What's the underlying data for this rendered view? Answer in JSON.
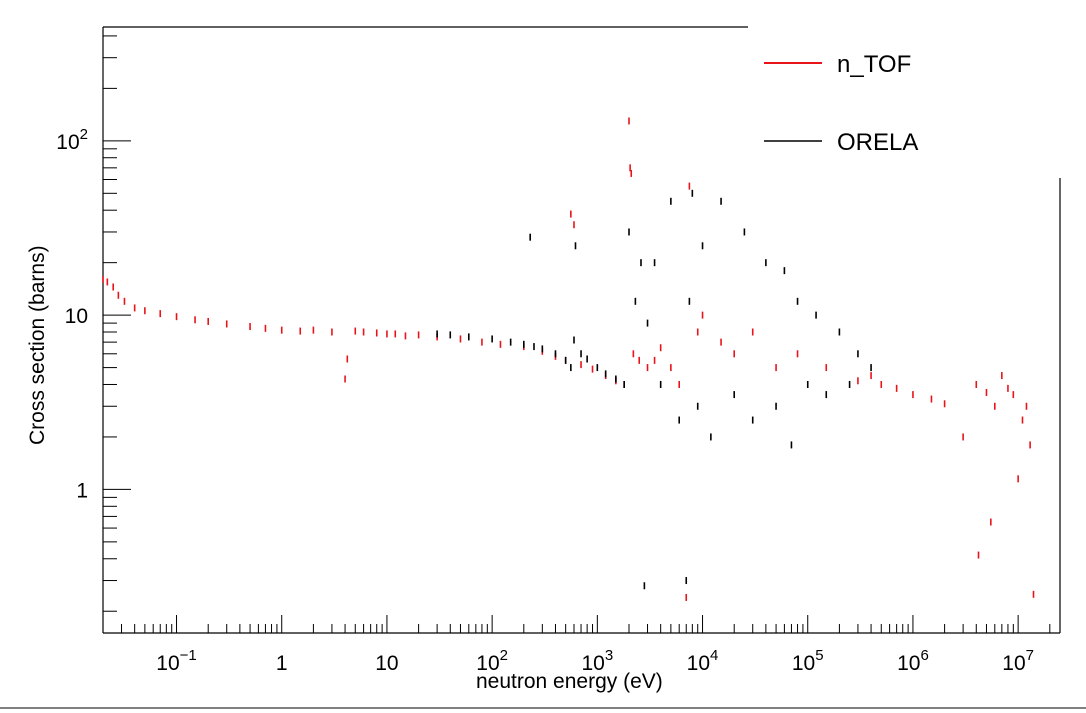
{
  "chart_data": {
    "type": "scatter",
    "title": "",
    "xlabel": "neutron energy (eV)",
    "ylabel": "Cross section (barns)",
    "x_scale": "log",
    "y_scale": "log",
    "xlim": [
      0.02,
      25000000
    ],
    "ylim": [
      0.15,
      450
    ],
    "legend": {
      "placement": "top-right",
      "entries": [
        "n_TOF",
        "ORELA"
      ]
    },
    "x_ticks": [
      {
        "label": "10",
        "sup": "−1"
      },
      {
        "label": "1",
        "sup": ""
      },
      {
        "label": "10",
        "sup": ""
      },
      {
        "label": "10",
        "sup": "2"
      },
      {
        "label": "10",
        "sup": "3"
      },
      {
        "label": "10",
        "sup": "4"
      },
      {
        "label": "10",
        "sup": "5"
      },
      {
        "label": "10",
        "sup": "6"
      },
      {
        "label": "10",
        "sup": "7"
      }
    ],
    "y_ticks": [
      {
        "label": "1",
        "sup": ""
      },
      {
        "label": "10",
        "sup": ""
      },
      {
        "label": "10",
        "sup": "2"
      }
    ],
    "series": [
      {
        "name": "n_TOF",
        "color": "#e8141a",
        "points": [
          [
            0.02,
            16
          ],
          [
            0.022,
            15.5
          ],
          [
            0.025,
            14.5
          ],
          [
            0.028,
            13
          ],
          [
            0.032,
            12
          ],
          [
            0.04,
            11
          ],
          [
            0.05,
            10.6
          ],
          [
            0.07,
            10.2
          ],
          [
            0.1,
            9.8
          ],
          [
            0.15,
            9.4
          ],
          [
            0.2,
            9.2
          ],
          [
            0.3,
            8.9
          ],
          [
            0.5,
            8.6
          ],
          [
            0.7,
            8.4
          ],
          [
            1,
            8.2
          ],
          [
            1.5,
            8.1
          ],
          [
            2,
            8.2
          ],
          [
            3,
            8.0
          ],
          [
            4,
            4.3
          ],
          [
            4.2,
            5.6
          ],
          [
            5,
            8.1
          ],
          [
            6,
            8.0
          ],
          [
            8,
            7.9
          ],
          [
            10,
            7.8
          ],
          [
            12,
            7.8
          ],
          [
            15,
            7.6
          ],
          [
            20,
            7.7
          ],
          [
            30,
            7.5
          ],
          [
            50,
            7.3
          ],
          [
            80,
            7.0
          ],
          [
            120,
            6.8
          ],
          [
            200,
            6.6
          ],
          [
            300,
            6.2
          ],
          [
            400,
            5.8
          ],
          [
            500,
            5.5
          ],
          [
            560,
            38
          ],
          [
            600,
            33
          ],
          [
            700,
            5.2
          ],
          [
            900,
            4.9
          ],
          [
            1200,
            4.5
          ],
          [
            1500,
            4.2
          ],
          [
            1800,
            4.0
          ],
          [
            2000,
            130
          ],
          [
            2050,
            70
          ],
          [
            2100,
            65
          ],
          [
            2200,
            6.0
          ],
          [
            2500,
            5.5
          ],
          [
            3000,
            5.0
          ],
          [
            3500,
            5.5
          ],
          [
            4000,
            6.5
          ],
          [
            5000,
            5.0
          ],
          [
            6000,
            4.0
          ],
          [
            7000,
            0.24
          ],
          [
            7500,
            55
          ],
          [
            9000,
            8.0
          ],
          [
            10000,
            10.0
          ],
          [
            15000,
            7.0
          ],
          [
            20000,
            6.0
          ],
          [
            30000,
            8.0
          ],
          [
            50000,
            5.0
          ],
          [
            80000,
            6.0
          ],
          [
            150000,
            5.0
          ],
          [
            300000,
            4.2
          ],
          [
            400000,
            4.5
          ],
          [
            500000,
            4.0
          ],
          [
            700000,
            3.8
          ],
          [
            1000000,
            3.5
          ],
          [
            1500000,
            3.3
          ],
          [
            2000000,
            3.1
          ],
          [
            3000000,
            2.0
          ],
          [
            4000000,
            4.0
          ],
          [
            4200000,
            0.42
          ],
          [
            5000000,
            3.6
          ],
          [
            5500000,
            0.65
          ],
          [
            6000000,
            3.0
          ],
          [
            7000000,
            4.5
          ],
          [
            8000000,
            3.8
          ],
          [
            9000000,
            3.5
          ],
          [
            10000000,
            1.15
          ],
          [
            11000000,
            2.5
          ],
          [
            12000000,
            3.0
          ],
          [
            13000000,
            1.8
          ],
          [
            14000000,
            0.25
          ]
        ]
      },
      {
        "name": "ORELA",
        "color": "#000000",
        "points": [
          [
            30,
            7.8
          ],
          [
            40,
            7.7
          ],
          [
            60,
            7.5
          ],
          [
            100,
            7.3
          ],
          [
            150,
            7.0
          ],
          [
            200,
            6.8
          ],
          [
            230,
            28
          ],
          [
            250,
            6.6
          ],
          [
            300,
            6.4
          ],
          [
            400,
            6.0
          ],
          [
            500,
            5.5
          ],
          [
            560,
            5.0
          ],
          [
            600,
            7.2
          ],
          [
            620,
            25
          ],
          [
            700,
            6.0
          ],
          [
            800,
            5.6
          ],
          [
            1000,
            5.0
          ],
          [
            1200,
            4.6
          ],
          [
            1500,
            4.3
          ],
          [
            1800,
            4.0
          ],
          [
            2000,
            30
          ],
          [
            2300,
            12
          ],
          [
            2600,
            20
          ],
          [
            2800,
            0.28
          ],
          [
            3000,
            9
          ],
          [
            3500,
            20
          ],
          [
            4000,
            4
          ],
          [
            5000,
            45
          ],
          [
            6000,
            2.5
          ],
          [
            7000,
            0.3
          ],
          [
            7500,
            12
          ],
          [
            8000,
            50
          ],
          [
            9000,
            3
          ],
          [
            10000,
            25
          ],
          [
            12000,
            2.0
          ],
          [
            15000,
            45
          ],
          [
            20000,
            3.5
          ],
          [
            25000,
            30
          ],
          [
            30000,
            2.5
          ],
          [
            40000,
            20
          ],
          [
            50000,
            3.0
          ],
          [
            60000,
            18
          ],
          [
            70000,
            1.8
          ],
          [
            80000,
            12
          ],
          [
            100000,
            4.0
          ],
          [
            120000,
            10
          ],
          [
            150000,
            3.5
          ],
          [
            200000,
            8
          ],
          [
            250000,
            4.0
          ],
          [
            300000,
            6.0
          ],
          [
            400000,
            5.0
          ]
        ]
      }
    ]
  }
}
